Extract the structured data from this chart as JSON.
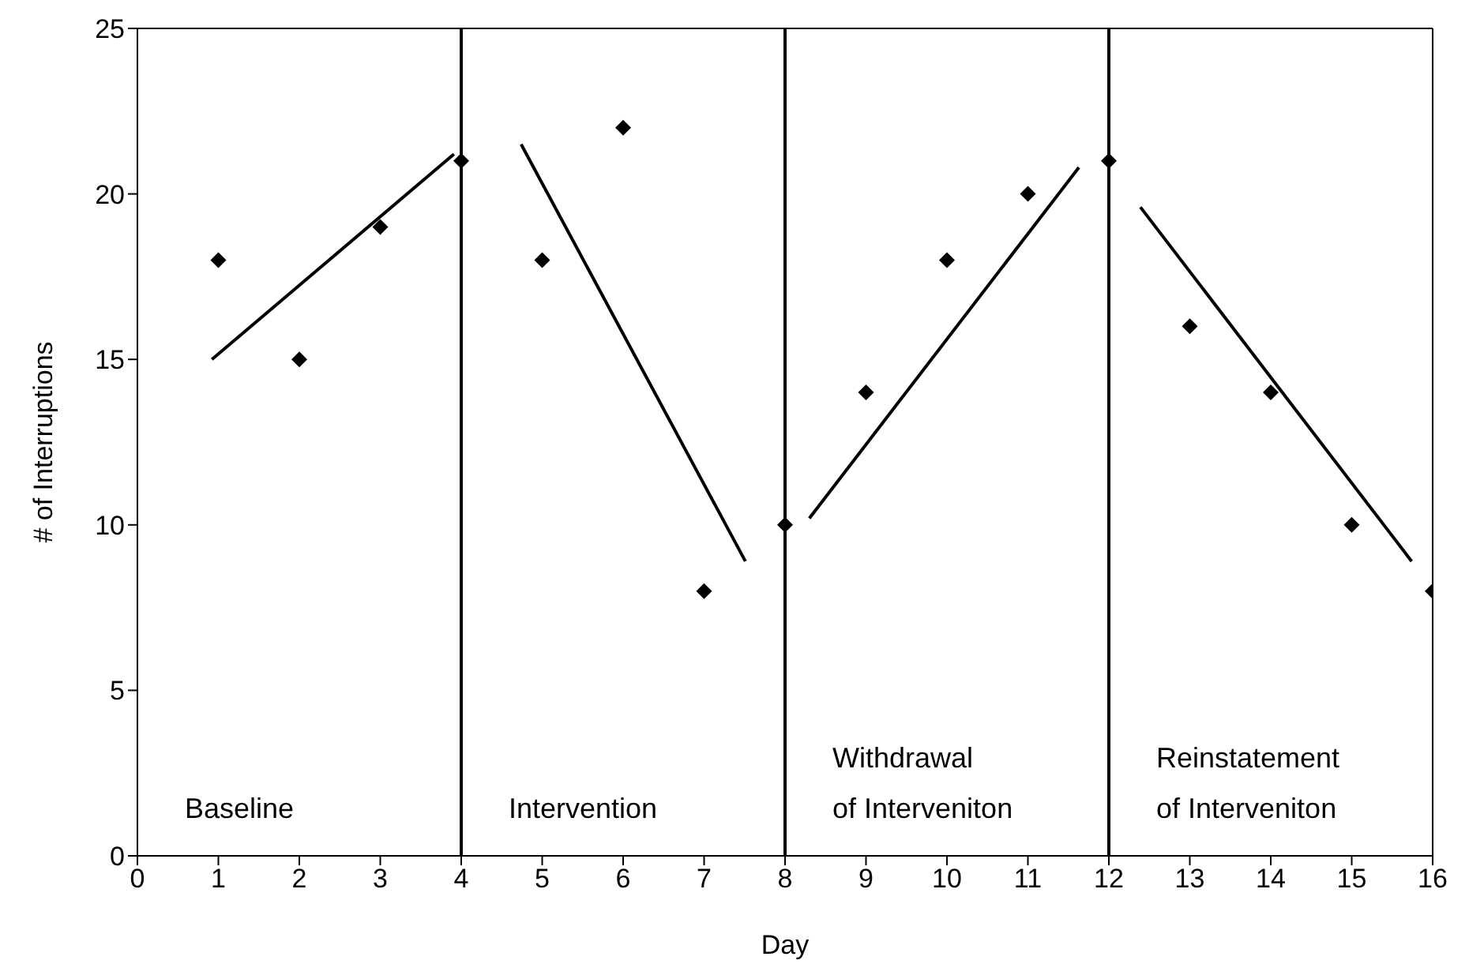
{
  "chart_data": {
    "type": "scatter",
    "xlabel": "Day",
    "ylabel": "# of Interruptions",
    "series": [
      {
        "color": "#000000",
        "marker": "diamond",
        "x": [
          1,
          2,
          3,
          4,
          5,
          6,
          7,
          8,
          9,
          10,
          11,
          12,
          13,
          14,
          15,
          16
        ],
        "values": [
          18,
          15,
          19,
          21,
          18,
          22,
          8,
          10,
          14,
          18,
          20,
          21,
          16,
          14,
          10,
          8
        ]
      },
      {
        "type": "line",
        "color": "#000000",
        "marker": "none",
        "x": [
          0.92,
          3.91
        ],
        "values": [
          15.0,
          21.2
        ]
      },
      {
        "type": "line",
        "color": "#000000",
        "marker": "none",
        "x": [
          4.74,
          7.51
        ],
        "values": [
          21.5,
          8.9
        ]
      },
      {
        "type": "line",
        "color": "#000000",
        "marker": "none",
        "x": [
          8.3,
          11.63
        ],
        "values": [
          10.2,
          20.8
        ]
      },
      {
        "type": "line",
        "color": "#000000",
        "marker": "none",
        "x": [
          12.39,
          15.74
        ],
        "values": [
          19.6,
          8.9
        ]
      }
    ],
    "xlim": [
      0,
      16
    ],
    "xticks": [
      0,
      1,
      2,
      3,
      4,
      5,
      6,
      7,
      8,
      9,
      10,
      11,
      12,
      13,
      14,
      15,
      16
    ],
    "ylim": [
      0,
      25
    ],
    "yticks": [
      0,
      5,
      10,
      15,
      20,
      25
    ],
    "ref_lines": [
      {
        "axis": "x",
        "value": 4,
        "color": "#000000"
      },
      {
        "axis": "x",
        "value": 8,
        "color": "#000000"
      },
      {
        "axis": "x",
        "value": 12,
        "color": "#000000"
      }
    ],
    "annotations": [
      "Baseline",
      "Intervention",
      "Withdrawal\nof Interveniton",
      "Reinstatement\nof Interveniton"
    ]
  }
}
